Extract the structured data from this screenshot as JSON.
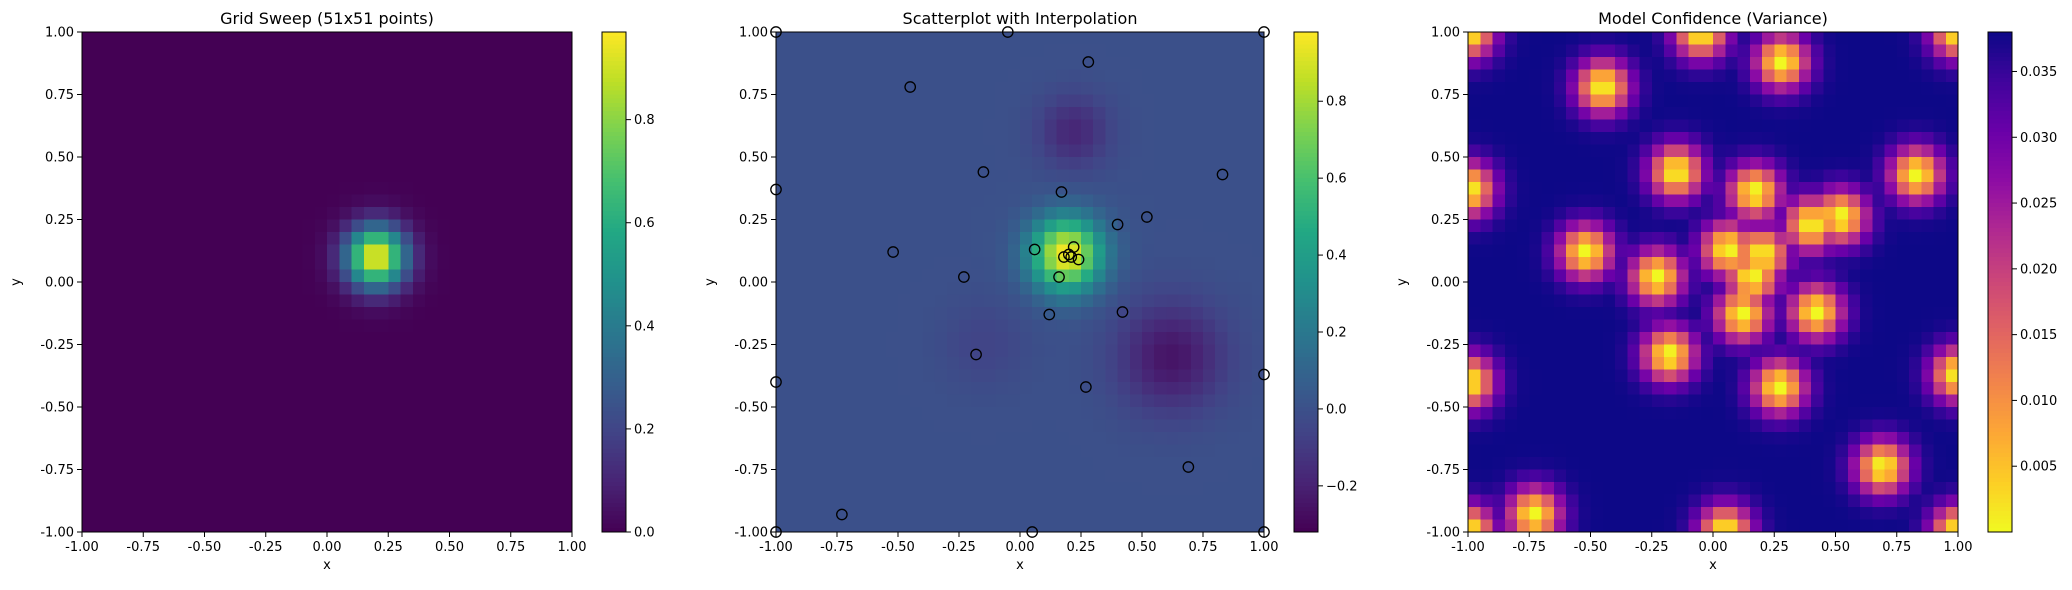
{
  "chart_data": [
    {
      "type": "heatmap",
      "title": "Grid Sweep (51x51 points)",
      "xlabel": "x",
      "ylabel": "y",
      "xlim": [
        -1.0,
        1.0
      ],
      "ylim": [
        -1.0,
        1.0
      ],
      "xticks": [
        "-1.00",
        "-0.75",
        "-0.50",
        "-0.25",
        "0.00",
        "0.25",
        "0.50",
        "0.75",
        "1.00"
      ],
      "yticks": [
        "-1.00",
        "-0.75",
        "-0.50",
        "-0.25",
        "0.00",
        "0.25",
        "0.50",
        "0.75",
        "1.00"
      ],
      "colormap": "viridis",
      "colorbar": {
        "min": 0.0,
        "max": 0.97,
        "ticks": [
          "0.0",
          "0.2",
          "0.4",
          "0.6",
          "0.8"
        ],
        "tick_values": [
          0.0,
          0.2,
          0.4,
          0.6,
          0.8
        ]
      },
      "field": {
        "kind": "gaussian",
        "center": [
          0.2,
          0.1
        ],
        "sigma": 0.085,
        "peak": 0.97,
        "base": 0.0
      },
      "grid_cells": 40
    },
    {
      "type": "heatmap",
      "title": "Scatterplot with Interpolation",
      "xlabel": "x",
      "ylabel": "y",
      "xlim": [
        -1.0,
        1.0
      ],
      "ylim": [
        -1.0,
        1.0
      ],
      "xticks": [
        "-1.00",
        "-0.75",
        "-0.50",
        "-0.25",
        "0.00",
        "0.25",
        "0.50",
        "0.75",
        "1.00"
      ],
      "yticks": [
        "-1.00",
        "-0.75",
        "-0.50",
        "-0.25",
        "0.00",
        "0.25",
        "0.50",
        "0.75",
        "1.00"
      ],
      "colormap": "viridis",
      "colorbar": {
        "min": -0.32,
        "max": 0.98,
        "ticks": [
          "−0.2",
          "0.0",
          "0.2",
          "0.4",
          "0.6",
          "0.8"
        ],
        "tick_values": [
          -0.2,
          0.0,
          0.2,
          0.4,
          0.6,
          0.8
        ]
      },
      "field": {
        "kind": "sum",
        "base": 0.0,
        "components": [
          {
            "center": [
              0.19,
              0.11
            ],
            "sigma": 0.1,
            "amp": 0.97
          },
          {
            "center": [
              0.62,
              -0.3
            ],
            "sigma": 0.15,
            "amp": -0.25
          },
          {
            "center": [
              0.22,
              0.6
            ],
            "sigma": 0.1,
            "amp": -0.18
          },
          {
            "center": [
              -0.15,
              -0.25
            ],
            "sigma": 0.12,
            "amp": -0.06
          }
        ]
      },
      "grid_cells": 40,
      "scatter_points": [
        [
          -1.0,
          1.0
        ],
        [
          -0.05,
          1.0
        ],
        [
          1.0,
          1.0
        ],
        [
          0.28,
          0.88
        ],
        [
          -0.45,
          0.78
        ],
        [
          -1.0,
          0.37
        ],
        [
          -0.15,
          0.44
        ],
        [
          0.83,
          0.43
        ],
        [
          0.17,
          0.36
        ],
        [
          0.52,
          0.26
        ],
        [
          0.4,
          0.23
        ],
        [
          -0.52,
          0.12
        ],
        [
          0.06,
          0.13
        ],
        [
          0.22,
          0.14
        ],
        [
          0.18,
          0.1
        ],
        [
          0.2,
          0.11
        ],
        [
          0.21,
          0.1
        ],
        [
          0.24,
          0.09
        ],
        [
          -0.23,
          0.02
        ],
        [
          0.16,
          0.02
        ],
        [
          0.12,
          -0.13
        ],
        [
          0.42,
          -0.12
        ],
        [
          -0.18,
          -0.29
        ],
        [
          1.0,
          -0.37
        ],
        [
          -1.0,
          -0.4
        ],
        [
          0.27,
          -0.42
        ],
        [
          0.69,
          -0.74
        ],
        [
          -0.73,
          -0.93
        ],
        [
          -1.0,
          -1.0
        ],
        [
          0.05,
          -1.0
        ],
        [
          1.0,
          -1.0
        ]
      ]
    },
    {
      "type": "heatmap",
      "title": "Model Confidence (Variance)",
      "xlabel": "x",
      "ylabel": "y",
      "xlim": [
        -1.0,
        1.0
      ],
      "ylim": [
        -1.0,
        1.0
      ],
      "xticks": [
        "-1.00",
        "-0.75",
        "-0.50",
        "-0.25",
        "0.00",
        "0.25",
        "0.50",
        "0.75",
        "1.00"
      ],
      "yticks": [
        "-1.00",
        "-0.75",
        "-0.50",
        "-0.25",
        "0.00",
        "0.25",
        "0.50",
        "0.75",
        "1.00"
      ],
      "colormap": "plasma_r",
      "colorbar": {
        "min": 0.0,
        "max": 0.038,
        "ticks": [
          "0.005",
          "0.010",
          "0.015",
          "0.020",
          "0.025",
          "0.030",
          "0.035"
        ],
        "tick_values": [
          0.005,
          0.01,
          0.015,
          0.02,
          0.025,
          0.03,
          0.035
        ]
      },
      "field": {
        "kind": "variance",
        "max": 0.038,
        "sigma": 0.075,
        "centers": [
          [
            -1.0,
            1.0
          ],
          [
            -0.05,
            1.0
          ],
          [
            1.0,
            1.0
          ],
          [
            0.28,
            0.88
          ],
          [
            -0.45,
            0.78
          ],
          [
            -1.0,
            0.37
          ],
          [
            -0.15,
            0.44
          ],
          [
            0.83,
            0.43
          ],
          [
            0.17,
            0.36
          ],
          [
            0.52,
            0.26
          ],
          [
            0.4,
            0.23
          ],
          [
            -0.52,
            0.12
          ],
          [
            0.06,
            0.13
          ],
          [
            0.2,
            0.11
          ],
          [
            -0.23,
            0.02
          ],
          [
            0.16,
            0.02
          ],
          [
            0.12,
            -0.13
          ],
          [
            0.42,
            -0.12
          ],
          [
            -0.18,
            -0.29
          ],
          [
            1.0,
            -0.37
          ],
          [
            -1.0,
            -0.4
          ],
          [
            0.27,
            -0.42
          ],
          [
            0.69,
            -0.74
          ],
          [
            -0.73,
            -0.93
          ],
          [
            -1.0,
            -1.0
          ],
          [
            0.05,
            -1.0
          ],
          [
            1.0,
            -1.0
          ]
        ]
      },
      "grid_cells": 40
    }
  ]
}
